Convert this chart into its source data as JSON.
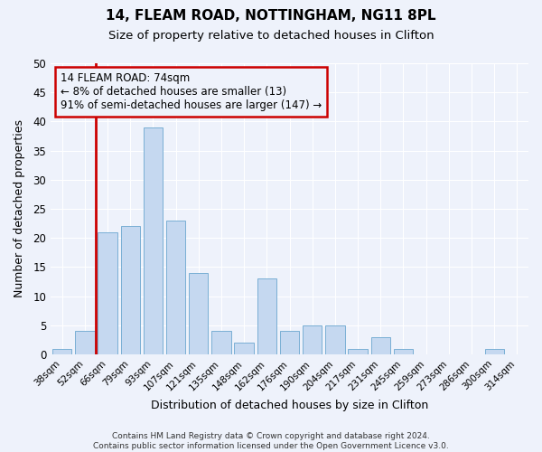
{
  "title1": "14, FLEAM ROAD, NOTTINGHAM, NG11 8PL",
  "title2": "Size of property relative to detached houses in Clifton",
  "xlabel": "Distribution of detached houses by size in Clifton",
  "ylabel": "Number of detached properties",
  "categories": [
    "38sqm",
    "52sqm",
    "66sqm",
    "79sqm",
    "93sqm",
    "107sqm",
    "121sqm",
    "135sqm",
    "148sqm",
    "162sqm",
    "176sqm",
    "190sqm",
    "204sqm",
    "217sqm",
    "231sqm",
    "245sqm",
    "259sqm",
    "273sqm",
    "286sqm",
    "300sqm",
    "314sqm"
  ],
  "values": [
    1,
    4,
    21,
    22,
    39,
    23,
    14,
    4,
    2,
    13,
    4,
    5,
    5,
    1,
    3,
    1,
    0,
    0,
    0,
    1,
    0
  ],
  "bar_color": "#c5d8f0",
  "bar_edge_color": "#7aafd4",
  "highlight_color": "#cc0000",
  "annotation_line1": "14 FLEAM ROAD: 74sqm",
  "annotation_line2": "← 8% of detached houses are smaller (13)",
  "annotation_line3": "91% of semi-detached houses are larger (147) →",
  "annotation_box_color": "#cc0000",
  "ylim": [
    0,
    50
  ],
  "yticks": [
    0,
    5,
    10,
    15,
    20,
    25,
    30,
    35,
    40,
    45,
    50
  ],
  "footer1": "Contains HM Land Registry data © Crown copyright and database right 2024.",
  "footer2": "Contains public sector information licensed under the Open Government Licence v3.0.",
  "bg_color": "#eef2fb",
  "grid_color": "#ffffff",
  "figsize": [
    6.0,
    5.0
  ],
  "dpi": 100,
  "vline_index": 1.5
}
